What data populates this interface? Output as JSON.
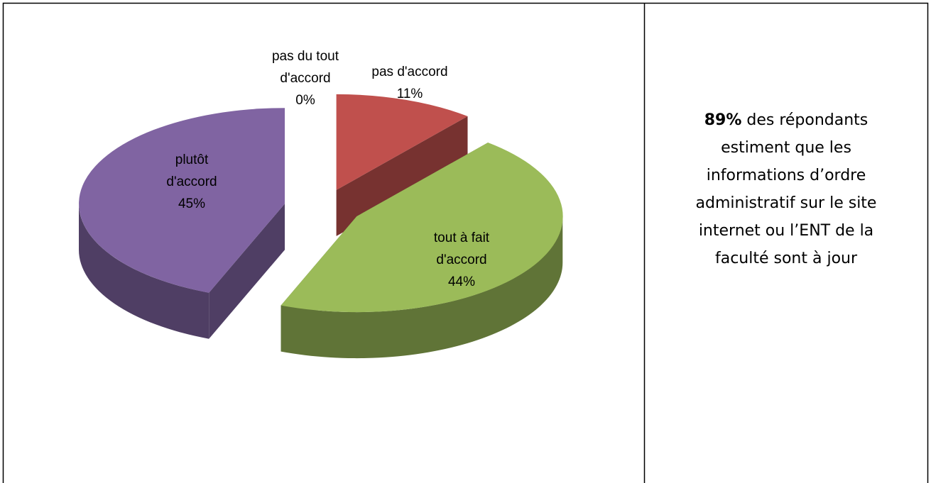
{
  "chart_data": {
    "type": "pie",
    "categories": [
      "pas du tout d'accord",
      "pas d'accord",
      "plutôt d'accord",
      "tout à fait d'accord"
    ],
    "values": [
      0,
      11,
      45,
      44
    ],
    "value_labels": [
      "0%",
      "11%",
      "45%",
      "44%"
    ],
    "colors": [
      "#4f81bd",
      "#c0504d",
      "#9bbb59",
      "#8064a2"
    ],
    "exploded": true,
    "three_d": true
  },
  "side_text": {
    "highlight": "89%",
    "text": "des répondants estiment que les informations d’ordre administratif sur le site internet ou l’ENT de la faculté sont à jour"
  }
}
